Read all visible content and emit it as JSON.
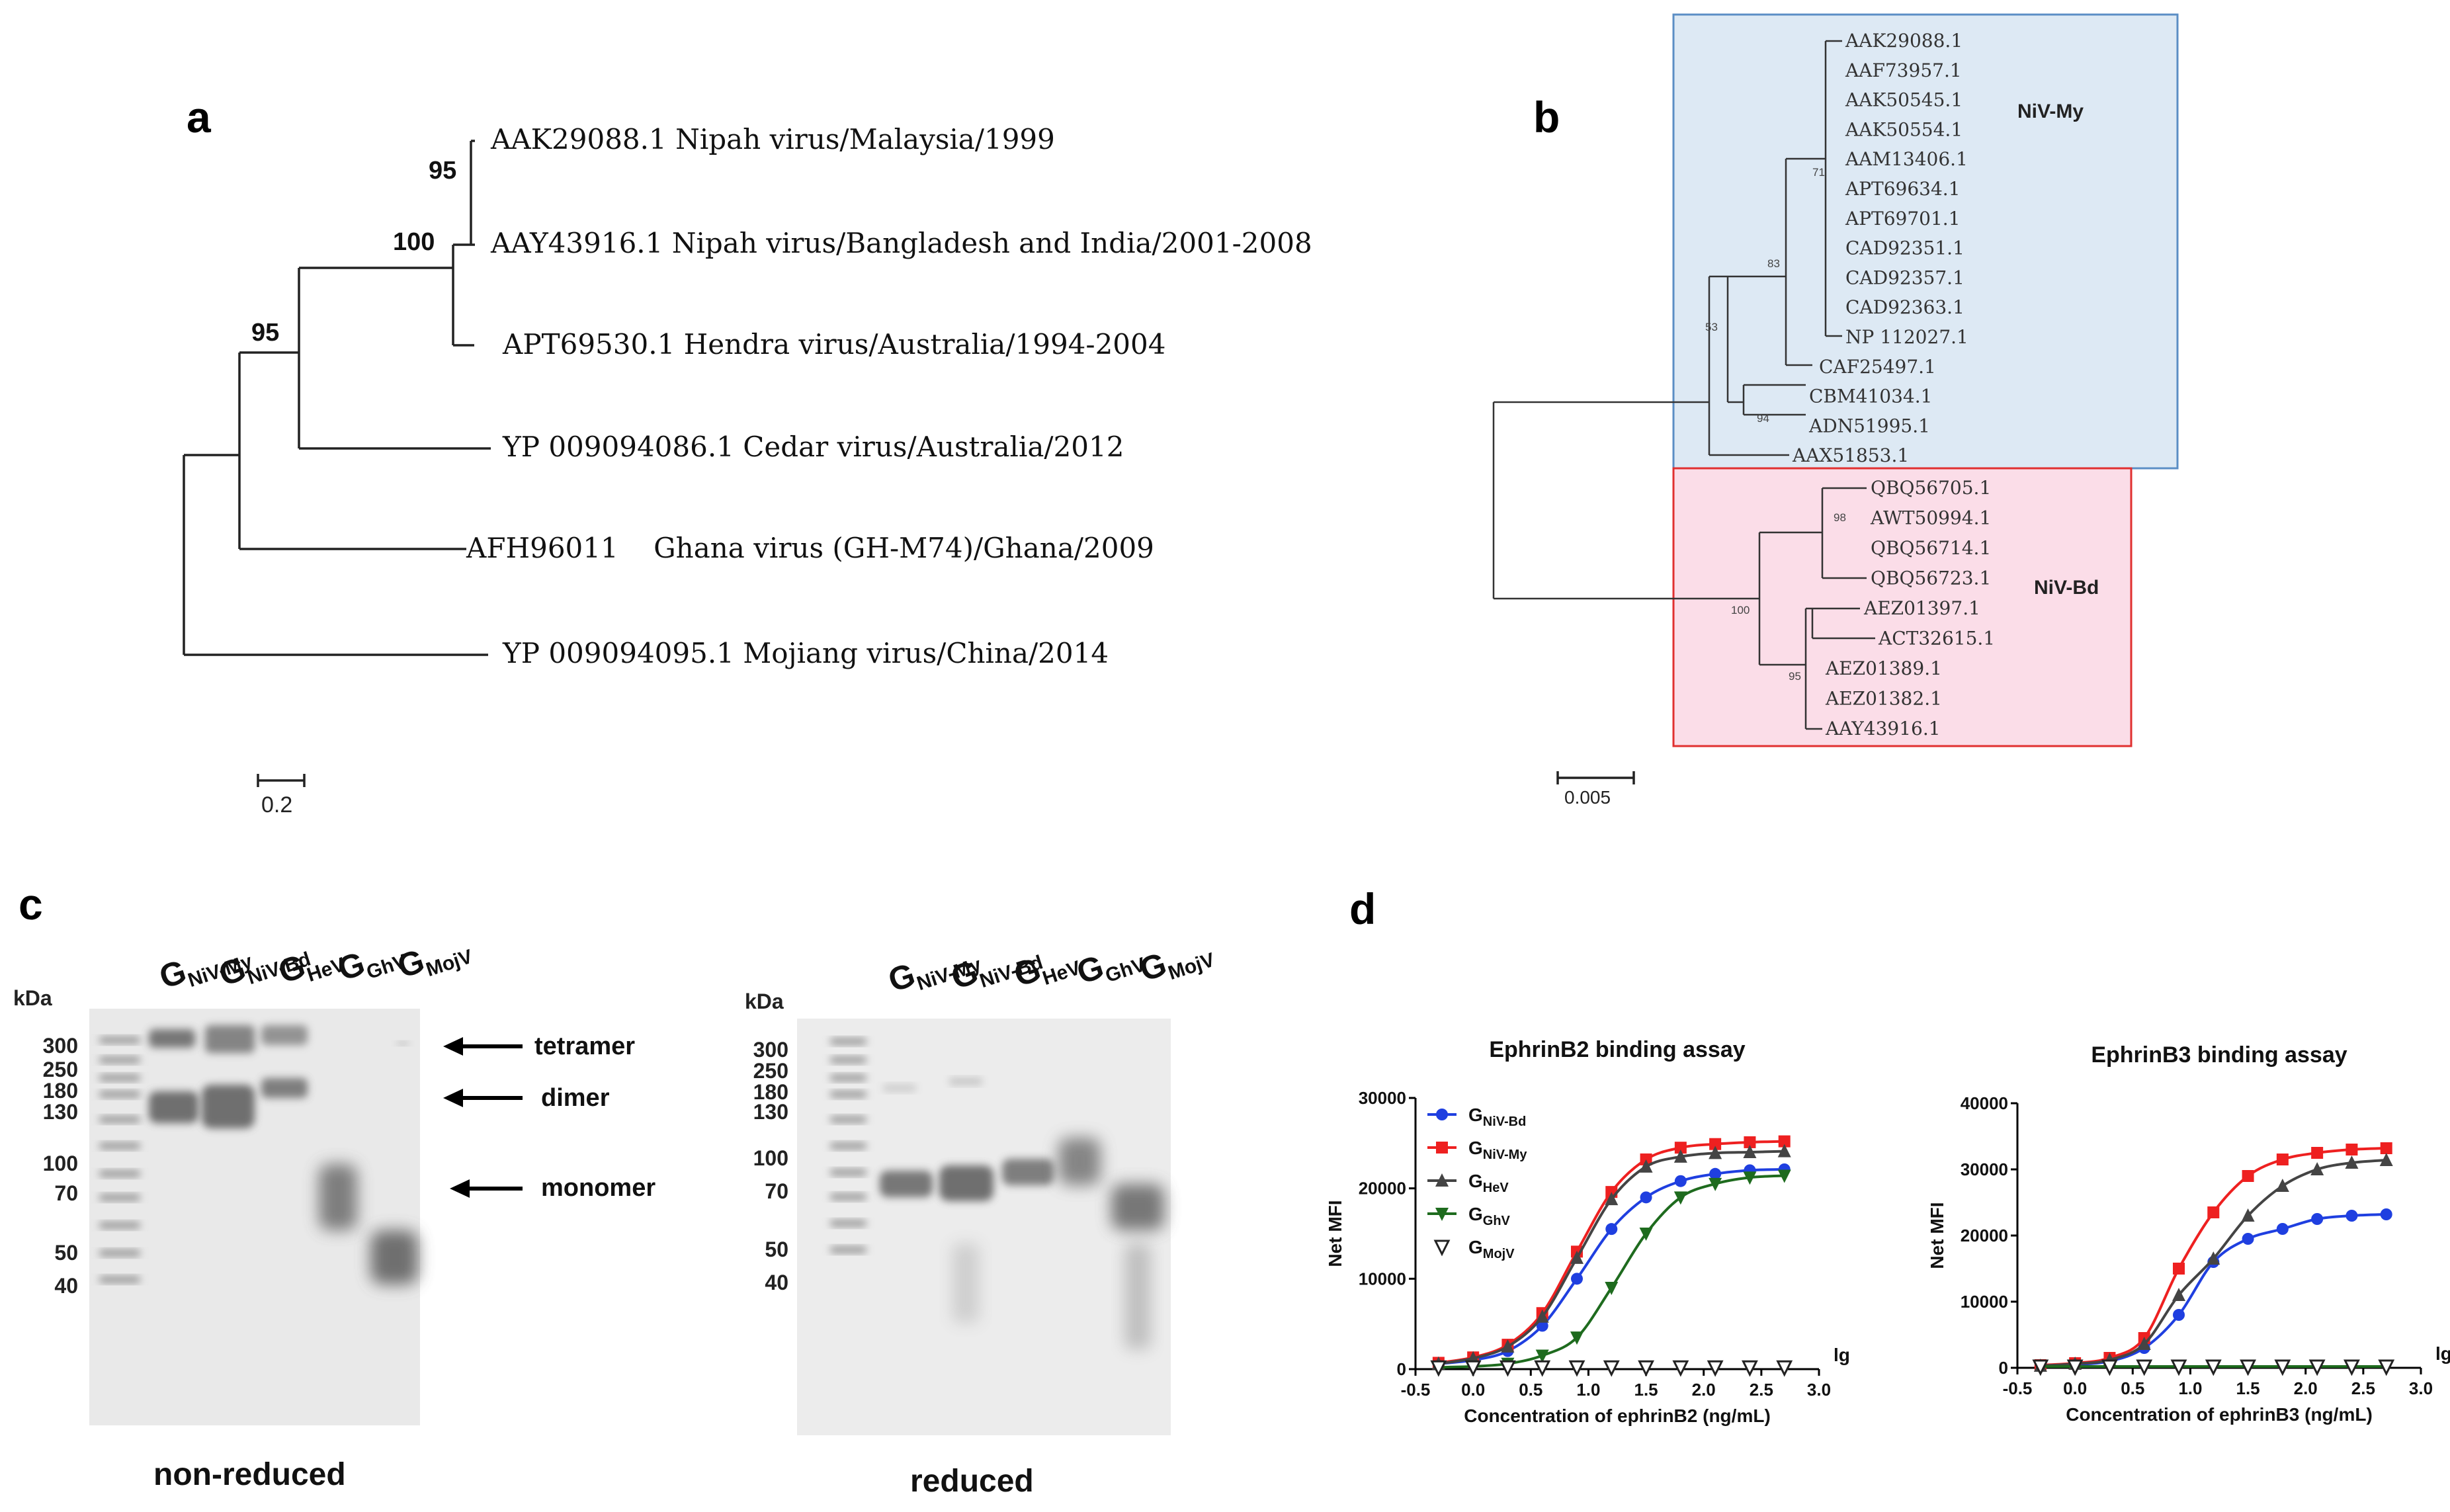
{
  "panels": {
    "a": "a",
    "b": "b",
    "c": "c",
    "d": "d"
  },
  "tree_a": {
    "taxa": [
      "AAK29088.1 Nipah virus/Malaysia/1999",
      "AAY43916.1 Nipah virus/Bangladesh and India/2001-2008",
      "APT69530.1 Hendra virus/Australia/1994-2004",
      "YP 009094086.1 Cedar virus/Australia/2012",
      "AFH96011    Ghana virus (GH-M74)/Ghana/2009",
      "YP 009094095.1 Mojiang virus/China/2014"
    ],
    "bootstrap": [
      "95",
      "100",
      "95"
    ],
    "scale_label": "0.2"
  },
  "tree_b": {
    "my_taxa": [
      "AAK29088.1",
      "AAF73957.1",
      "AAK50545.1",
      "AAK50554.1",
      "AAM13406.1",
      "APT69634.1",
      "APT69701.1",
      "CAD92351.1",
      "CAD92357.1",
      "CAD92363.1",
      "NP 112027.1",
      "CAF25497.1",
      "CBM41034.1",
      "ADN51995.1",
      "AAX51853.1"
    ],
    "bd_taxa": [
      "QBQ56705.1",
      "AWT50994.1",
      "QBQ56714.1",
      "QBQ56723.1",
      "AEZ01397.1",
      "ACT32615.1",
      "AEZ01389.1",
      "AEZ01382.1",
      "AAY43916.1"
    ],
    "bootstrap": [
      "71",
      "83",
      "53",
      "94",
      "98",
      "100",
      "95"
    ],
    "clade_my": "NiV-My",
    "clade_bd": "NiV-Bd",
    "scale_label": "0.005",
    "colors": {
      "my_fill": "#dde9f4",
      "my_edge": "#5b8ec5",
      "bd_fill": "#fbdde8",
      "bd_edge": "#e03030"
    }
  },
  "gel": {
    "kda": "kDa",
    "markers_nonreduced": [
      "300",
      "250",
      "180",
      "130",
      "100",
      "70",
      "50",
      "40"
    ],
    "markers_reduced": [
      "300",
      "250",
      "180",
      "130",
      "100",
      "70",
      "50",
      "40"
    ],
    "lanes": [
      {
        "main": "G",
        "sub": "NiV-My"
      },
      {
        "main": "G",
        "sub": "NiV-Bd"
      },
      {
        "main": "G",
        "sub": "HeV"
      },
      {
        "main": "G",
        "sub": "GhV"
      },
      {
        "main": "G",
        "sub": "MojV"
      }
    ],
    "annotations": [
      "tetramer",
      "dimer",
      "monomer"
    ],
    "caption_nonreduced": "non-reduced",
    "caption_reduced": "reduced"
  },
  "chart_data": [
    {
      "type": "scatter",
      "title": "EphrinB2 binding assay",
      "xlabel": "Concentration of ephrinB2 (ng/mL)",
      "ylabel": "Net MFI",
      "xlog_label": "lg",
      "xlim": [
        -0.5,
        3.0
      ],
      "ylim": [
        0,
        30000
      ],
      "xticks": [
        "-0.5",
        "0.0",
        "0.5",
        "1.0",
        "1.5",
        "2.0",
        "2.5",
        "3.0"
      ],
      "yticks": [
        "0",
        "10000",
        "20000",
        "30000"
      ],
      "x": [
        -0.3,
        0.0,
        0.3,
        0.6,
        0.9,
        1.2,
        1.5,
        1.8,
        2.1,
        2.4,
        2.7
      ],
      "series": [
        {
          "name": "G",
          "sub": "NiV-Bd",
          "color": "#1f3fe0",
          "marker": "circle",
          "values": [
            600,
            1000,
            2000,
            4800,
            10000,
            15500,
            19000,
            20800,
            21600,
            22000,
            22100
          ]
        },
        {
          "name": "G",
          "sub": "NiV-My",
          "color": "#ee2020",
          "marker": "square",
          "values": [
            700,
            1300,
            2700,
            6200,
            13000,
            19600,
            23200,
            24500,
            24900,
            25100,
            25200
          ]
        },
        {
          "name": "G",
          "sub": "HeV",
          "color": "#444444",
          "marker": "triangle",
          "values": [
            600,
            1200,
            2500,
            5800,
            12300,
            18800,
            22400,
            23500,
            23900,
            24000,
            24100
          ]
        },
        {
          "name": "G",
          "sub": "GhV",
          "color": "#1e6b1e",
          "marker": "triangle-down",
          "values": [
            200,
            300,
            600,
            1500,
            3500,
            9000,
            15000,
            19000,
            20500,
            21200,
            21400
          ]
        },
        {
          "name": "G",
          "sub": "MojV",
          "color": "#222222",
          "marker": "triangle-down-open",
          "values": [
            200,
            200,
            200,
            200,
            200,
            200,
            200,
            200,
            200,
            200,
            200
          ]
        }
      ]
    },
    {
      "type": "scatter",
      "title": "EphrinB3 binding assay",
      "xlabel": "Concentration of ephrinB3 (ng/mL)",
      "ylabel": "Net MFI",
      "xlog_label": "lg",
      "xlim": [
        -0.5,
        3.0
      ],
      "ylim": [
        0,
        40000
      ],
      "xticks": [
        "-0.5",
        "0.0",
        "0.5",
        "1.0",
        "1.5",
        "2.0",
        "2.5",
        "3.0"
      ],
      "yticks": [
        "0",
        "10000",
        "20000",
        "30000",
        "40000"
      ],
      "x": [
        -0.3,
        0.0,
        0.3,
        0.6,
        0.9,
        1.2,
        1.5,
        1.8,
        2.1,
        2.4,
        2.7
      ],
      "series": [
        {
          "name": "G",
          "sub": "NiV-Bd",
          "color": "#1f3fe0",
          "marker": "circle",
          "values": [
            300,
            500,
            1000,
            3000,
            8000,
            16000,
            19500,
            21000,
            22500,
            23000,
            23200
          ]
        },
        {
          "name": "G",
          "sub": "NiV-My",
          "color": "#ee2020",
          "marker": "square",
          "values": [
            400,
            700,
            1500,
            4500,
            15000,
            23500,
            29000,
            31500,
            32500,
            33000,
            33200
          ]
        },
        {
          "name": "G",
          "sub": "HeV",
          "color": "#444444",
          "marker": "triangle",
          "values": [
            300,
            600,
            1200,
            3600,
            11000,
            16500,
            23000,
            27500,
            30000,
            31000,
            31400
          ]
        },
        {
          "name": "G",
          "sub": "GhV",
          "color": "#1e6b1e",
          "marker": "triangle-down",
          "values": [
            200,
            200,
            200,
            200,
            200,
            200,
            200,
            200,
            200,
            200,
            200
          ]
        },
        {
          "name": "G",
          "sub": "MojV",
          "color": "#222222",
          "marker": "triangle-down-open",
          "values": [
            200,
            200,
            200,
            200,
            200,
            200,
            200,
            200,
            200,
            200,
            200
          ]
        }
      ]
    }
  ]
}
